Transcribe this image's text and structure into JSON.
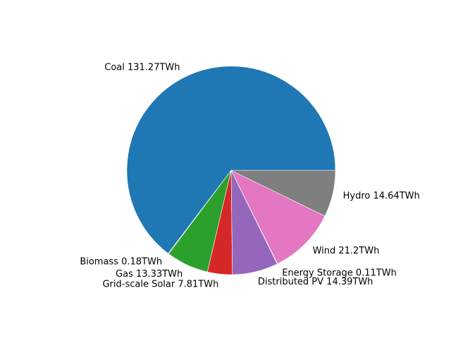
{
  "chart_data": {
    "type": "pie",
    "title": "",
    "start_angle_deg": 0,
    "direction": "counterclockwise",
    "categories": [
      "Coal",
      "Biomass",
      "Gas",
      "Grid-scale Solar",
      "Distributed PV",
      "Energy Storage",
      "Wind",
      "Hydro"
    ],
    "values": [
      131.27,
      0.18,
      13.33,
      7.81,
      14.39,
      0.11,
      21.2,
      14.64
    ],
    "unit": "TWh",
    "labels": [
      "Coal 131.27TWh",
      "Biomass 0.18TWh",
      "Gas 13.33TWh",
      "Grid-scale Solar 7.81TWh",
      "Distributed PV 14.39TWh",
      "Energy Storage 0.11TWh",
      "Wind 21.2TWh",
      "Hydro 14.64TWh"
    ],
    "colors": [
      "#1f77b4",
      "#ff7f0e",
      "#2ca02c",
      "#d62728",
      "#9467bd",
      "#8c564b",
      "#e377c2",
      "#7f7f7f"
    ]
  }
}
